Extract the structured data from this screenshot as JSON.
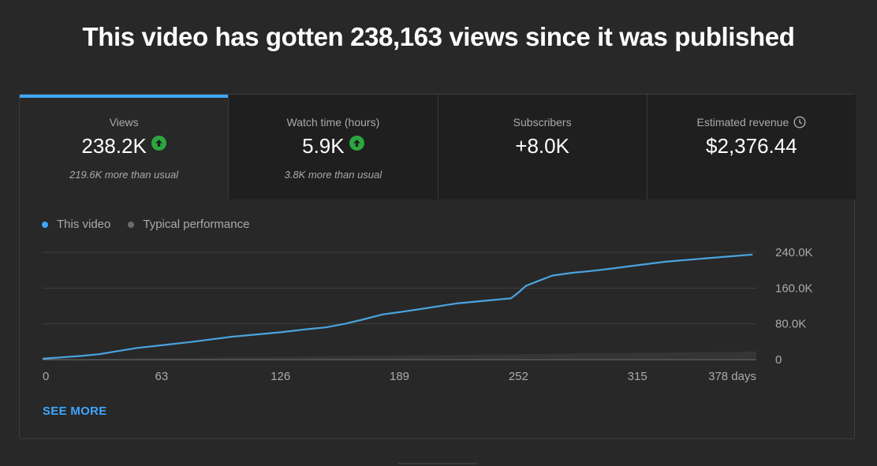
{
  "headline": "This video has gotten 238,163 views since it was published",
  "metrics": [
    {
      "label": "Views",
      "value": "238.2K",
      "note": "219.6K more than usual",
      "trend_icon": "arrow-up-icon"
    },
    {
      "label": "Watch time (hours)",
      "value": "5.9K",
      "note": "3.8K more than usual",
      "trend_icon": "arrow-up-icon"
    },
    {
      "label": "Subscribers",
      "value": "+8.0K"
    },
    {
      "label": "Estimated revenue",
      "value": "$2,376.44",
      "info_icon": "clock-icon"
    }
  ],
  "legend": {
    "this_video": "This video",
    "typical": "Typical performance"
  },
  "colors": {
    "accent": "#3ea6ff",
    "line": "#4aa3df",
    "up_badge": "#2ba640",
    "typical": "#6b6b6b"
  },
  "chart_data": {
    "type": "line",
    "x_tick_labels": [
      "0",
      "63",
      "126",
      "189",
      "252",
      "315",
      "378 days"
    ],
    "x_ticks": [
      0,
      63,
      126,
      189,
      252,
      315,
      378
    ],
    "y_tick_labels": [
      "0",
      "80.0K",
      "160.0K",
      "240.0K"
    ],
    "y_ticks": [
      0,
      80000,
      160000,
      240000
    ],
    "xlim": [
      0,
      378
    ],
    "ylim": [
      0,
      240000
    ],
    "grid": true,
    "legend_placement": "top-left",
    "series": [
      {
        "name": "This video",
        "x": [
          0,
          10,
          20,
          30,
          40,
          50,
          63,
          80,
          100,
          126,
          140,
          150,
          160,
          170,
          180,
          189,
          200,
          220,
          240,
          248,
          252,
          256,
          262,
          270,
          280,
          290,
          300,
          315,
          330,
          350,
          370,
          376
        ],
        "y": [
          2000,
          5000,
          8000,
          12000,
          19000,
          26000,
          32000,
          40000,
          51000,
          61000,
          68000,
          72000,
          80000,
          90000,
          101000,
          106000,
          113000,
          126000,
          134000,
          137000,
          150000,
          165000,
          175000,
          188000,
          194000,
          198000,
          203000,
          211000,
          219000,
          226000,
          233000,
          235000
        ]
      },
      {
        "name": "Typical performance",
        "x": [
          0,
          63,
          126,
          189,
          252,
          315,
          378
        ],
        "y": [
          0,
          3000,
          6000,
          9000,
          12000,
          15000,
          18000
        ]
      }
    ]
  },
  "see_more": "SEE MORE"
}
